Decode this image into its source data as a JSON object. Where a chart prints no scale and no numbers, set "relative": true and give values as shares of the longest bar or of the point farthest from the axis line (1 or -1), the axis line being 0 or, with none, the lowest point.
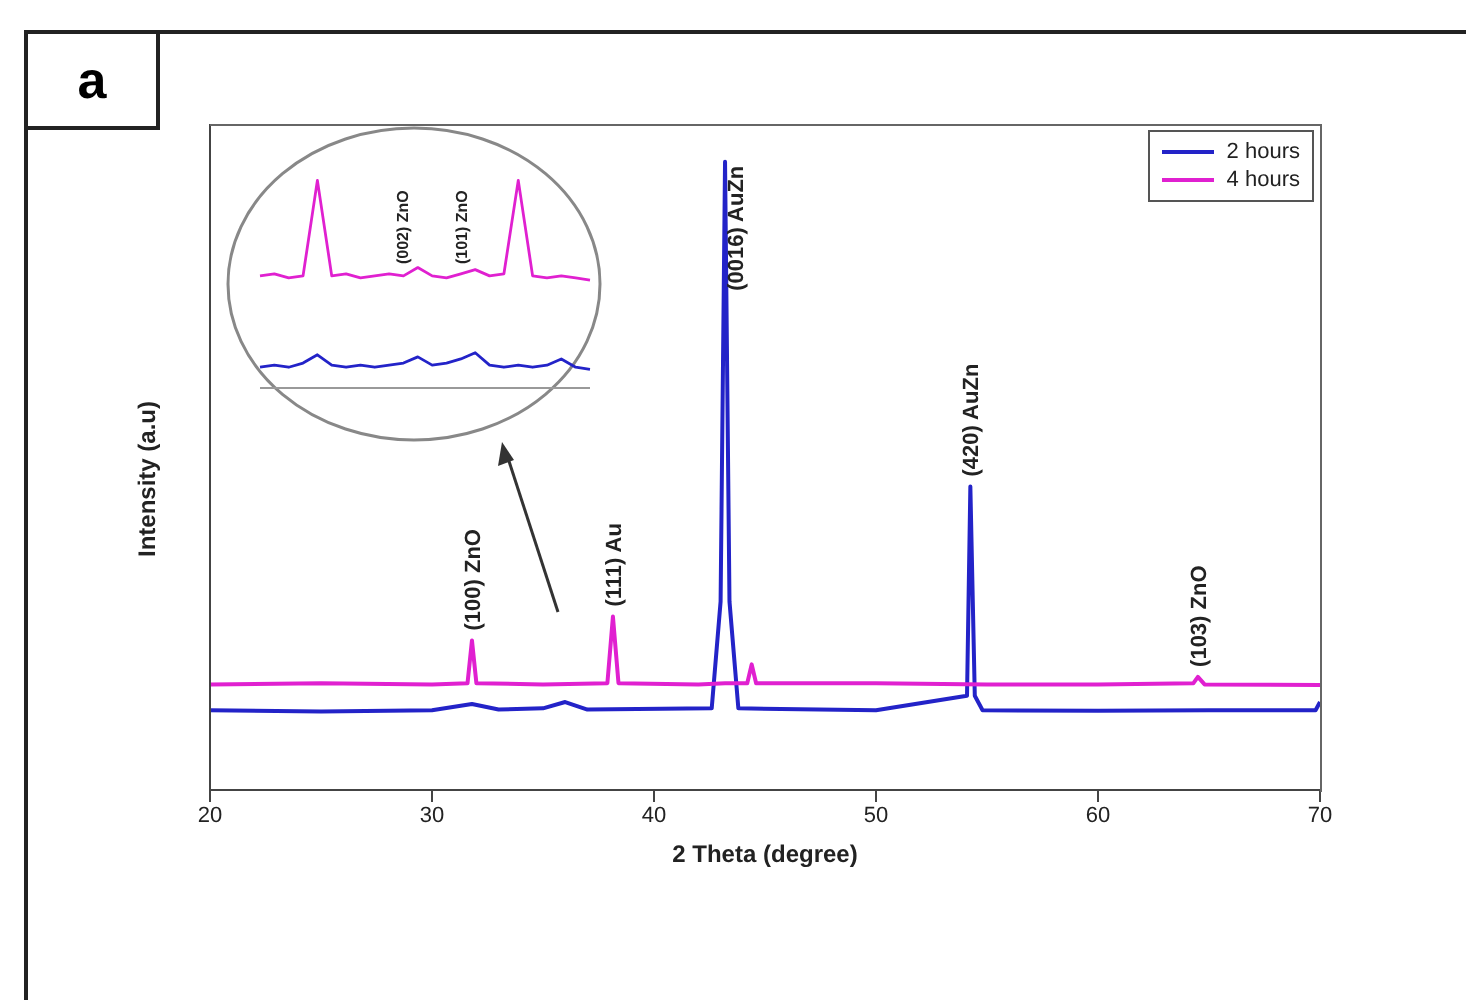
{
  "chart_data": [
    {
      "type": "line",
      "xlabel": "2 Theta (degree)",
      "ylabel": "Intensity (a.u)",
      "relative": true,
      "xlim": [
        20,
        70
      ],
      "xticks": [
        20,
        30,
        40,
        50,
        60,
        70
      ],
      "legend": "top right",
      "marker": "none",
      "line_style": "solid",
      "series": [
        {
          "name": "2 hours",
          "color": "#2323c8",
          "x": [
            20,
            25,
            30,
            31.8,
            33,
            35,
            36,
            37,
            42.6,
            43.0,
            43.2,
            43.4,
            43.8,
            50,
            54.1,
            54.25,
            54.45,
            54.8,
            60,
            65,
            69.8,
            70
          ],
          "values": [
            0.127,
            0.125,
            0.127,
            0.137,
            0.128,
            0.13,
            0.14,
            0.128,
            0.13,
            0.3,
            1,
            0.3,
            0.13,
            0.127,
            0.15,
            0.483,
            0.15,
            0.127,
            0.126,
            0.127,
            0.127,
            0.14
          ]
        },
        {
          "name": "4 hours",
          "color": "#e020d0",
          "x": [
            20,
            25,
            30,
            31.6,
            31.8,
            32,
            35,
            37.9,
            38.15,
            38.4,
            42,
            43.2,
            44.2,
            44.4,
            44.6,
            50,
            55,
            60,
            64.3,
            64.5,
            64.8,
            70
          ],
          "values": [
            0.168,
            0.17,
            0.168,
            0.17,
            0.238,
            0.17,
            0.168,
            0.17,
            0.276,
            0.17,
            0.168,
            0.17,
            0.17,
            0.2,
            0.17,
            0.17,
            0.168,
            0.168,
            0.17,
            0.18,
            0.168,
            0.167
          ]
        }
      ],
      "annotations": [
        "a",
        {
          "text": "(100) ZnO",
          "x": 31.8,
          "y": 0.238
        },
        {
          "text": "(111) Au",
          "x": 38.15,
          "y": 0.276
        },
        {
          "text": "(0016) AuZn",
          "x": 43.2,
          "y": 1
        },
        {
          "text": "(420) AuZn",
          "x": 54.25,
          "y": 0.483
        },
        {
          "text": "(103) ZnO",
          "x": 64.5,
          "y": 0.18
        }
      ]
    },
    {
      "type": "line",
      "relative": true,
      "tick_labels": false,
      "line_style": "solid",
      "categories": [
        null,
        null,
        null,
        null,
        null,
        null,
        null,
        null,
        null,
        null,
        null,
        null,
        null,
        null,
        null,
        null,
        null,
        null,
        null,
        null,
        null,
        null,
        null,
        null
      ],
      "series": [
        {
          "color": "#e020d0",
          "values": [
            0.54,
            0.55,
            0.53,
            0.54,
            1,
            0.54,
            0.55,
            0.53,
            0.54,
            0.55,
            0.54,
            0.58,
            0.54,
            0.53,
            0.55,
            0.57,
            0.54,
            0.55,
            1,
            0.54,
            0.53,
            0.54,
            0.53,
            0.52
          ]
        },
        {
          "color": "#2323c8",
          "values": [
            0.1,
            0.11,
            0.1,
            0.12,
            0.16,
            0.11,
            0.1,
            0.11,
            0.1,
            0.11,
            0.12,
            0.15,
            0.11,
            0.12,
            0.14,
            0.17,
            0.11,
            0.1,
            0.11,
            0.1,
            0.11,
            0.14,
            0.1,
            0.09
          ]
        }
      ],
      "annotations": [
        "(002) ZnO",
        "(101) ZnO"
      ]
    }
  ]
}
